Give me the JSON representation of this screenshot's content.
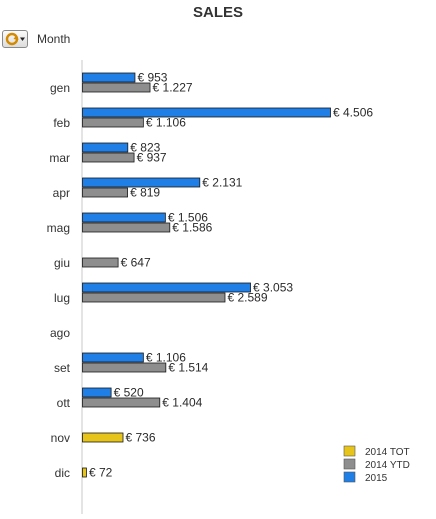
{
  "chart_data": {
    "type": "bar",
    "orientation": "horizontal",
    "title": "SALES",
    "dimension_label": "Month",
    "categories": [
      "gen",
      "feb",
      "mar",
      "apr",
      "mag",
      "giu",
      "lug",
      "ago",
      "set",
      "ott",
      "nov",
      "dic"
    ],
    "series": [
      {
        "name": "2014 TOT",
        "color": "#e6c41a",
        "values": [
          null,
          null,
          null,
          null,
          null,
          null,
          null,
          null,
          null,
          null,
          736,
          72
        ],
        "labels": [
          null,
          null,
          null,
          null,
          null,
          null,
          null,
          null,
          null,
          null,
          "€ 736",
          "€ 72"
        ]
      },
      {
        "name": "2014 YTD",
        "color": "#8e8e8e",
        "values": [
          1227,
          1106,
          937,
          819,
          1586,
          647,
          2589,
          null,
          1514,
          1404,
          null,
          null
        ],
        "labels": [
          "€ 1.227",
          "€ 1.106",
          "€ 937",
          "€ 819",
          "€ 1.586",
          "€ 647",
          "€ 2.589",
          null,
          "€ 1.514",
          "€ 1.404",
          null,
          null
        ]
      },
      {
        "name": "2015",
        "color": "#1f7fe6",
        "values": [
          953,
          4506,
          823,
          2131,
          1506,
          null,
          3053,
          null,
          1106,
          520,
          null,
          null
        ],
        "labels": [
          "€ 953",
          "€ 4.506",
          "€ 823",
          "€ 2.131",
          "€ 1.506",
          null,
          "€ 3.053",
          null,
          "€ 1.106",
          "€ 520",
          null,
          null
        ]
      }
    ],
    "legend": {
      "position": "bottom-right",
      "items": [
        {
          "name": "2014 TOT",
          "color": "#e6c41a"
        },
        {
          "name": "2014 YTD",
          "color": "#8e8e8e"
        },
        {
          "name": "2015",
          "color": "#1f7fe6"
        }
      ]
    },
    "xlim": [
      0,
      4506
    ],
    "grid": false
  }
}
